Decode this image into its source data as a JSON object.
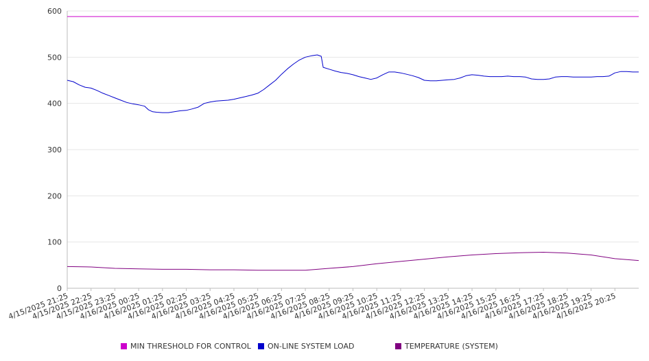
{
  "chart_data": {
    "type": "line",
    "title": "",
    "xlabel": "",
    "ylabel": "",
    "ylim": [
      0,
      600
    ],
    "yticks": [
      0,
      100,
      200,
      300,
      400,
      500,
      600
    ],
    "grid": true,
    "legend_position": "bottom",
    "x_tick_labels": [
      "4/15/2025 21:25",
      "4/15/2025 22:25",
      "4/15/2025 23:25",
      "4/16/2025 00:25",
      "4/16/2025 01:25",
      "4/16/2025 02:25",
      "4/16/2025 03:25",
      "4/16/2025 04:25",
      "4/16/2025 05:25",
      "4/16/2025 06:25",
      "4/16/2025 07:25",
      "4/16/2025 08:25",
      "4/16/2025 09:25",
      "4/16/2025 10:25",
      "4/16/2025 11:25",
      "4/16/2025 12:25",
      "4/16/2025 13:25",
      "4/16/2025 14:25",
      "4/16/2025 15:25",
      "4/16/2025 16:25",
      "4/16/2025 17:25",
      "4/16/2025 18:25",
      "4/16/2025 19:25",
      "4/16/2025 20:25"
    ],
    "x_start": "4/15/2025 21:25",
    "x_end": "4/16/2025 21:25",
    "series": [
      {
        "name": "MIN THRESHOLD FOR CONTROL",
        "color": "#cc00cc",
        "points": [
          [
            "4/15/2025 21:25",
            588
          ],
          [
            "4/16/2025 21:25",
            588
          ]
        ]
      },
      {
        "name": "ON-LINE SYSTEM LOAD",
        "color": "#0000cc",
        "points": [
          [
            "4/15/2025 21:25",
            450
          ],
          [
            "4/15/2025 21:40",
            447
          ],
          [
            "4/15/2025 21:55",
            440
          ],
          [
            "4/15/2025 22:10",
            435
          ],
          [
            "4/15/2025 22:25",
            433
          ],
          [
            "4/15/2025 22:40",
            428
          ],
          [
            "4/15/2025 22:55",
            422
          ],
          [
            "4/15/2025 23:10",
            417
          ],
          [
            "4/15/2025 23:25",
            412
          ],
          [
            "4/15/2025 23:40",
            407
          ],
          [
            "4/15/2025 23:55",
            402
          ],
          [
            "4/16/2025 00:10",
            399
          ],
          [
            "4/16/2025 00:25",
            397
          ],
          [
            "4/16/2025 00:40",
            394
          ],
          [
            "4/16/2025 00:50",
            386
          ],
          [
            "4/16/2025 01:00",
            382
          ],
          [
            "4/16/2025 01:10",
            381
          ],
          [
            "4/16/2025 01:25",
            380
          ],
          [
            "4/16/2025 01:40",
            380
          ],
          [
            "4/16/2025 01:55",
            382
          ],
          [
            "4/16/2025 02:10",
            384
          ],
          [
            "4/16/2025 02:25",
            385
          ],
          [
            "4/16/2025 02:40",
            388
          ],
          [
            "4/16/2025 02:55",
            392
          ],
          [
            "4/16/2025 03:10",
            400
          ],
          [
            "4/16/2025 03:25",
            403
          ],
          [
            "4/16/2025 03:40",
            405
          ],
          [
            "4/16/2025 03:55",
            406
          ],
          [
            "4/16/2025 04:10",
            407
          ],
          [
            "4/16/2025 04:25",
            409
          ],
          [
            "4/16/2025 04:40",
            412
          ],
          [
            "4/16/2025 04:55",
            415
          ],
          [
            "4/16/2025 05:10",
            418
          ],
          [
            "4/16/2025 05:25",
            422
          ],
          [
            "4/16/2025 05:40",
            430
          ],
          [
            "4/16/2025 05:55",
            440
          ],
          [
            "4/16/2025 06:10",
            450
          ],
          [
            "4/16/2025 06:25",
            463
          ],
          [
            "4/16/2025 06:40",
            475
          ],
          [
            "4/16/2025 06:55",
            485
          ],
          [
            "4/16/2025 07:10",
            494
          ],
          [
            "4/16/2025 07:25",
            500
          ],
          [
            "4/16/2025 07:40",
            503
          ],
          [
            "4/16/2025 07:55",
            505
          ],
          [
            "4/16/2025 08:05",
            502
          ],
          [
            "4/16/2025 08:10",
            478
          ],
          [
            "4/16/2025 08:25",
            474
          ],
          [
            "4/16/2025 08:40",
            470
          ],
          [
            "4/16/2025 08:55",
            467
          ],
          [
            "4/16/2025 09:10",
            465
          ],
          [
            "4/16/2025 09:25",
            462
          ],
          [
            "4/16/2025 09:40",
            458
          ],
          [
            "4/16/2025 09:55",
            455
          ],
          [
            "4/16/2025 10:10",
            452
          ],
          [
            "4/16/2025 10:25",
            455
          ],
          [
            "4/16/2025 10:40",
            462
          ],
          [
            "4/16/2025 10:55",
            468
          ],
          [
            "4/16/2025 11:10",
            468
          ],
          [
            "4/16/2025 11:25",
            466
          ],
          [
            "4/16/2025 11:40",
            463
          ],
          [
            "4/16/2025 11:55",
            460
          ],
          [
            "4/16/2025 12:10",
            456
          ],
          [
            "4/16/2025 12:25",
            450
          ],
          [
            "4/16/2025 12:40",
            449
          ],
          [
            "4/16/2025 12:55",
            449
          ],
          [
            "4/16/2025 13:10",
            450
          ],
          [
            "4/16/2025 13:25",
            451
          ],
          [
            "4/16/2025 13:40",
            452
          ],
          [
            "4/16/2025 13:55",
            455
          ],
          [
            "4/16/2025 14:10",
            460
          ],
          [
            "4/16/2025 14:25",
            462
          ],
          [
            "4/16/2025 14:40",
            461
          ],
          [
            "4/16/2025 14:55",
            459
          ],
          [
            "4/16/2025 15:10",
            458
          ],
          [
            "4/16/2025 15:25",
            458
          ],
          [
            "4/16/2025 15:40",
            458
          ],
          [
            "4/16/2025 15:55",
            459
          ],
          [
            "4/16/2025 16:10",
            458
          ],
          [
            "4/16/2025 16:25",
            458
          ],
          [
            "4/16/2025 16:40",
            457
          ],
          [
            "4/16/2025 16:55",
            453
          ],
          [
            "4/16/2025 17:10",
            452
          ],
          [
            "4/16/2025 17:25",
            452
          ],
          [
            "4/16/2025 17:40",
            453
          ],
          [
            "4/16/2025 17:55",
            457
          ],
          [
            "4/16/2025 18:10",
            458
          ],
          [
            "4/16/2025 18:25",
            458
          ],
          [
            "4/16/2025 18:40",
            457
          ],
          [
            "4/16/2025 18:55",
            457
          ],
          [
            "4/16/2025 19:10",
            457
          ],
          [
            "4/16/2025 19:25",
            457
          ],
          [
            "4/16/2025 19:40",
            458
          ],
          [
            "4/16/2025 19:55",
            458
          ],
          [
            "4/16/2025 20:10",
            459
          ],
          [
            "4/16/2025 20:25",
            466
          ],
          [
            "4/16/2025 20:40",
            469
          ],
          [
            "4/16/2025 20:55",
            469
          ],
          [
            "4/16/2025 21:10",
            468
          ],
          [
            "4/16/2025 21:25",
            468
          ]
        ]
      },
      {
        "name": "TEMPERATURE (SYSTEM)",
        "color": "#800080",
        "points": [
          [
            "4/15/2025 21:25",
            47
          ],
          [
            "4/15/2025 22:25",
            46
          ],
          [
            "4/15/2025 23:25",
            43
          ],
          [
            "4/16/2025 00:25",
            42
          ],
          [
            "4/16/2025 01:25",
            41
          ],
          [
            "4/16/2025 02:25",
            41
          ],
          [
            "4/16/2025 03:25",
            40
          ],
          [
            "4/16/2025 04:25",
            40
          ],
          [
            "4/16/2025 05:25",
            39
          ],
          [
            "4/16/2025 06:25",
            39
          ],
          [
            "4/16/2025 07:25",
            39
          ],
          [
            "4/16/2025 08:25",
            43
          ],
          [
            "4/16/2025 09:25",
            47
          ],
          [
            "4/16/2025 10:25",
            53
          ],
          [
            "4/16/2025 11:25",
            58
          ],
          [
            "4/16/2025 12:25",
            63
          ],
          [
            "4/16/2025 13:25",
            68
          ],
          [
            "4/16/2025 14:25",
            72
          ],
          [
            "4/16/2025 15:25",
            75
          ],
          [
            "4/16/2025 16:25",
            77
          ],
          [
            "4/16/2025 17:25",
            78
          ],
          [
            "4/16/2025 18:25",
            76
          ],
          [
            "4/16/2025 19:25",
            72
          ],
          [
            "4/16/2025 20:25",
            64
          ],
          [
            "4/16/2025 21:25",
            60
          ]
        ]
      }
    ]
  }
}
